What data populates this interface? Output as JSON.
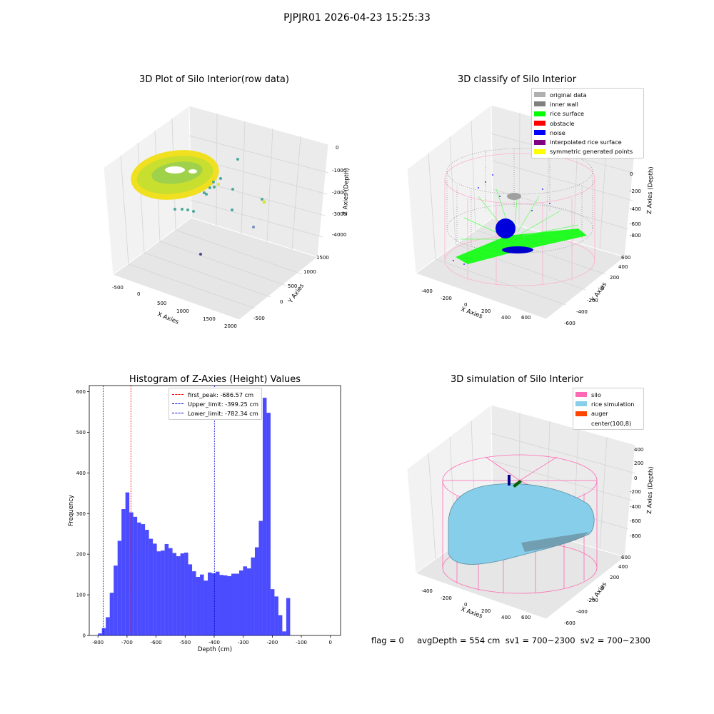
{
  "suptitle": "PJPJR01 2026-04-23 15:25:33",
  "status_line": "flag = 0     avgDepth = 554 cm  sv1 = 700~2300  sv2 = 700~2300",
  "plots": {
    "raw": {
      "title": "3D Plot of Silo Interior(row data)",
      "xlabel": "X Axies",
      "ylabel": "Y Axies",
      "zlabel": "Z Axies (Depth)",
      "xticks": [
        "-500",
        "0",
        "500",
        "1000",
        "1500",
        "2000"
      ],
      "yticks": [
        "-500",
        "0",
        "500",
        "1000",
        "1500"
      ],
      "zticks": [
        "0",
        "-1000",
        "-2000",
        "-3000",
        "-4000"
      ]
    },
    "classify": {
      "title": "3D classify of Silo Interior",
      "xlabel": "X Axies",
      "ylabel": "Y Axies",
      "zlabel": "Z Axies (Depth)",
      "xticks": [
        "-400",
        "-200",
        "0",
        "200",
        "400",
        "600"
      ],
      "yticks": [
        "-600",
        "-400",
        "-200",
        "0",
        "200",
        "400",
        "600"
      ],
      "zticks": [
        "200",
        "0",
        "-200",
        "-400",
        "-600",
        "-800"
      ],
      "legend": [
        {
          "label": "original data",
          "color": "#b0b0b0"
        },
        {
          "label": "inner wall",
          "color": "#808080"
        },
        {
          "label": "rice surface",
          "color": "#00ff00"
        },
        {
          "label": "obstacle",
          "color": "#ff0000"
        },
        {
          "label": "noise",
          "color": "#0000ff"
        },
        {
          "label": "interpolated rice surface",
          "color": "#800080"
        },
        {
          "label": "symmetric generated points",
          "color": "#ffff00"
        }
      ]
    },
    "simulation": {
      "title": "3D simulation of Silo Interior",
      "xlabel": "X Axies",
      "ylabel": "Y Axies",
      "zlabel": "Z Axies (Depth)",
      "xticks": [
        "-400",
        "-200",
        "0",
        "200",
        "400",
        "600"
      ],
      "yticks": [
        "-600",
        "-400",
        "-200",
        "0",
        "200",
        "400",
        "600"
      ],
      "zticks": [
        "400",
        "200",
        "0",
        "-200",
        "-400",
        "-600",
        "-800"
      ],
      "legend": [
        {
          "label": "silo",
          "color": "#ff69b4"
        },
        {
          "label": "rice simulation",
          "color": "#87ceeb"
        },
        {
          "label": "auger",
          "color": "#ff4500"
        },
        {
          "label": "center(100,8)",
          "color": "#ffffff"
        }
      ]
    }
  },
  "chart_data": {
    "type": "bar",
    "title": "Histogram of Z-Axies (Height) Values",
    "xlabel": "Depth (cm)",
    "ylabel": "Frequency",
    "xlim": [
      -830,
      35
    ],
    "ylim": [
      0,
      615
    ],
    "xticks": [
      -800,
      -700,
      -600,
      -500,
      -400,
      -300,
      -200,
      -100,
      0
    ],
    "yticks": [
      0,
      100,
      200,
      300,
      400,
      500,
      600
    ],
    "bin_start": -800,
    "bin_width": 13.5,
    "values": [
      5,
      18,
      45,
      105,
      172,
      233,
      311,
      352,
      303,
      292,
      278,
      274,
      260,
      238,
      226,
      207,
      209,
      225,
      215,
      203,
      195,
      202,
      204,
      175,
      158,
      144,
      150,
      135,
      155,
      153,
      157,
      149,
      148,
      146,
      152,
      152,
      160,
      170,
      165,
      192,
      217,
      282,
      585,
      548,
      114,
      96,
      50,
      10,
      92
    ],
    "bar_color": "#0000ff",
    "bar_alpha": 0.7,
    "vlines": [
      {
        "x": -686.57,
        "color": "#ff0000",
        "label": "first_peak: -686.57 cm"
      },
      {
        "x": -399.25,
        "color": "#0000cc",
        "label": "Upper_limit: -399.25 cm"
      },
      {
        "x": -782.34,
        "color": "#0000cc",
        "label": "Lower_limit: -782.34 cm"
      }
    ],
    "legend_position": "top-center"
  }
}
